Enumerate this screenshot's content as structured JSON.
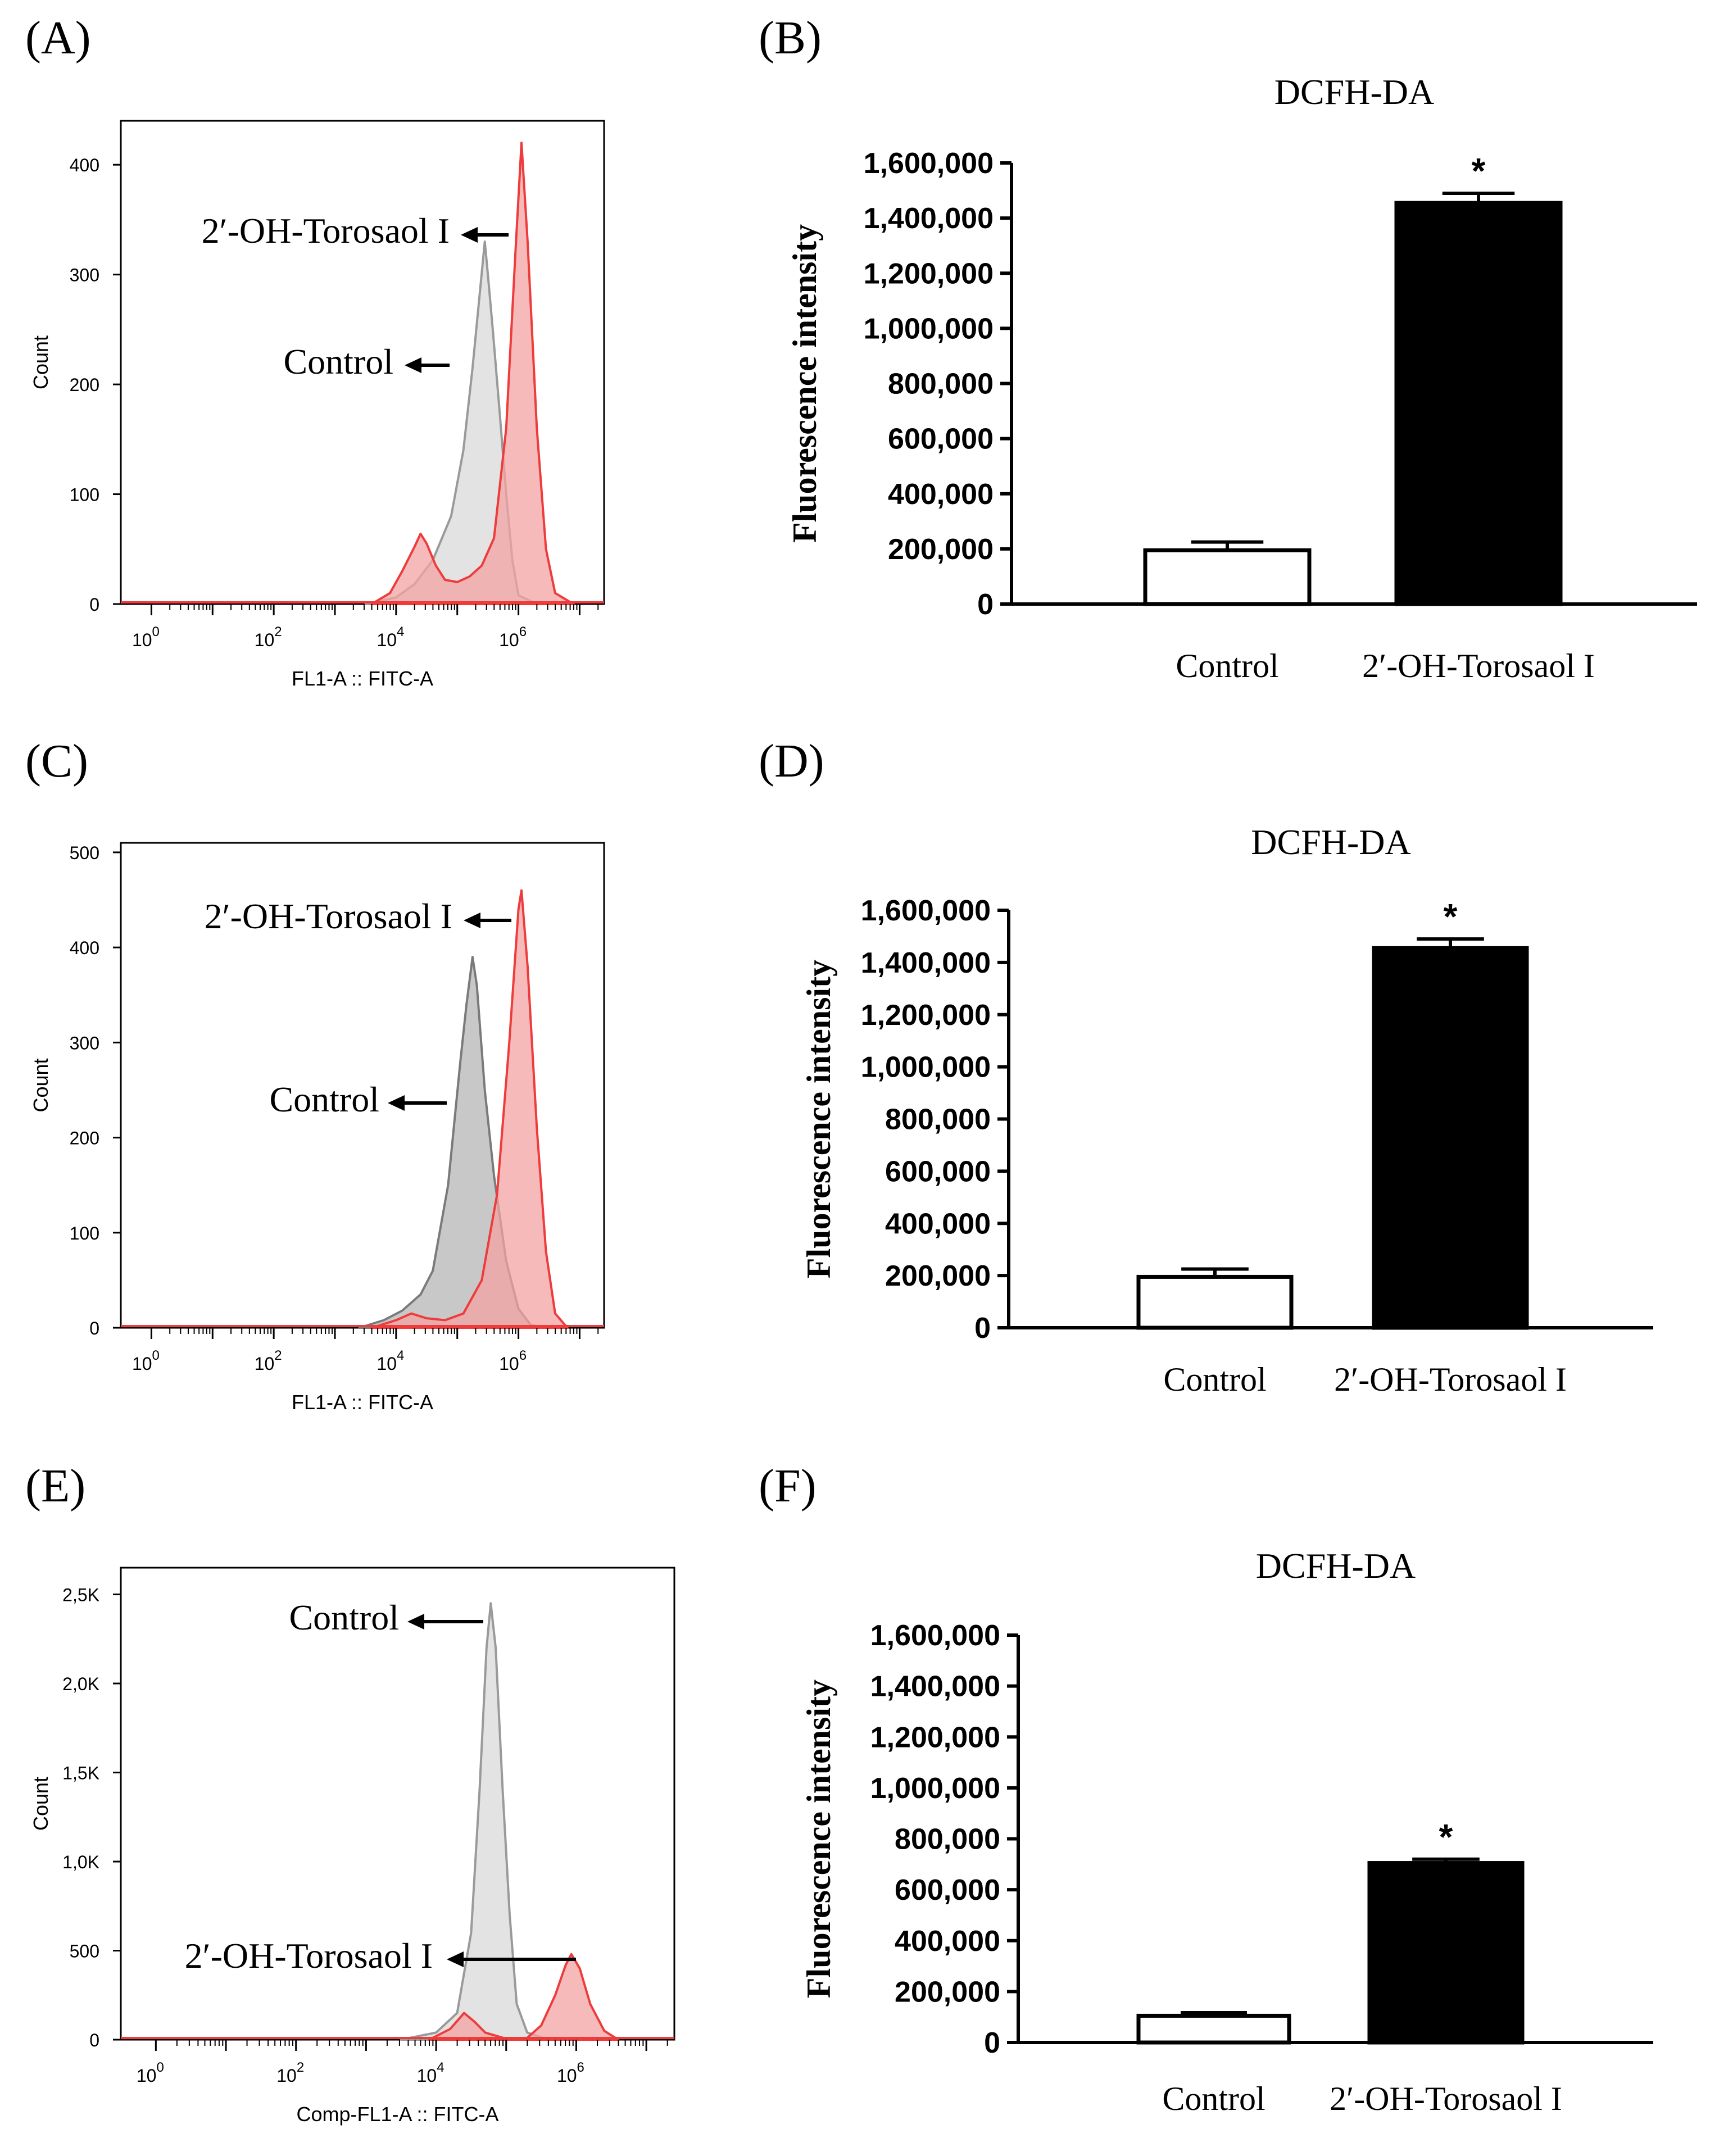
{
  "figure": {
    "panels": [
      {
        "id": "A",
        "label": "(A)",
        "kind": "histogram"
      },
      {
        "id": "B",
        "label": "(B)",
        "kind": "bar"
      },
      {
        "id": "C",
        "label": "(C)",
        "kind": "histogram"
      },
      {
        "id": "D",
        "label": "(D)",
        "kind": "bar"
      },
      {
        "id": "E",
        "label": "(E)",
        "kind": "histogram"
      },
      {
        "id": "F",
        "label": "(F)",
        "kind": "bar"
      }
    ]
  },
  "chart_data": [
    {
      "panel": "A",
      "type": "area",
      "title": "",
      "xlabel": "FL1-A :: FITC-A",
      "ylabel": "Count",
      "x_scale": "log10",
      "xlim_log10": [
        -0.5,
        7.4
      ],
      "ylim": [
        0,
        440
      ],
      "x_tick_labels": [
        {
          "base": "10",
          "exp": "0",
          "log": 0
        },
        {
          "base": "10",
          "exp": "2",
          "log": 2
        },
        {
          "base": "10",
          "exp": "4",
          "log": 4
        },
        {
          "base": "10",
          "exp": "6",
          "log": 6
        }
      ],
      "y_ticks": [
        {
          "label": "0",
          "value": 0
        },
        {
          "label": "100",
          "value": 100
        },
        {
          "label": "200",
          "value": 200
        },
        {
          "label": "300",
          "value": 300
        },
        {
          "label": "400",
          "value": 400
        }
      ],
      "series": [
        {
          "name": "Control",
          "color": "#9a9a9a",
          "fill": "#d9d9d9",
          "points": [
            [
              3.5,
              0
            ],
            [
              4.0,
              6
            ],
            [
              4.3,
              18
            ],
            [
              4.6,
              40
            ],
            [
              4.9,
              80
            ],
            [
              5.1,
              140
            ],
            [
              5.25,
              215
            ],
            [
              5.38,
              290
            ],
            [
              5.45,
              330
            ],
            [
              5.5,
              300
            ],
            [
              5.58,
              250
            ],
            [
              5.7,
              170
            ],
            [
              5.8,
              100
            ],
            [
              5.9,
              40
            ],
            [
              6.0,
              8
            ],
            [
              6.3,
              0
            ]
          ]
        },
        {
          "name": "2'-OH-Torosaol I",
          "color": "#ee3b3b",
          "fill": "#f4a3a3",
          "points": [
            [
              3.6,
              0
            ],
            [
              3.9,
              10
            ],
            [
              4.1,
              30
            ],
            [
              4.3,
              52
            ],
            [
              4.4,
              64
            ],
            [
              4.5,
              55
            ],
            [
              4.65,
              35
            ],
            [
              4.8,
              22
            ],
            [
              5.0,
              20
            ],
            [
              5.2,
              25
            ],
            [
              5.4,
              35
            ],
            [
              5.6,
              60
            ],
            [
              5.8,
              160
            ],
            [
              5.95,
              320
            ],
            [
              6.05,
              420
            ],
            [
              6.15,
              330
            ],
            [
              6.3,
              160
            ],
            [
              6.45,
              50
            ],
            [
              6.6,
              10
            ],
            [
              6.9,
              0
            ]
          ]
        }
      ],
      "annotations": [
        {
          "text": "2′-OH-Torosaol I",
          "arrow_to": "2'-OH-Torosaol I"
        },
        {
          "text": "Control",
          "arrow_to": "Control"
        }
      ]
    },
    {
      "panel": "B",
      "type": "bar",
      "title": "DCFH-DA",
      "xlabel": "",
      "ylabel": "Fluorescence intensity",
      "categories": [
        "Control",
        "2′-OH-Torosaol I"
      ],
      "values": [
        195000,
        1455000
      ],
      "errors": [
        30000,
        35000
      ],
      "significance": [
        "",
        "*"
      ],
      "ylim": [
        0,
        1600000
      ],
      "y_tick_labels": [
        "0",
        "200,000",
        "400,000",
        "600,000",
        "800,000",
        "1,000,000",
        "1,200,000",
        "1,400,000",
        "1,600,000"
      ]
    },
    {
      "panel": "C",
      "type": "area",
      "title": "",
      "xlabel": "FL1-A :: FITC-A",
      "ylabel": "Count",
      "x_scale": "log10",
      "xlim_log10": [
        -0.5,
        7.4
      ],
      "ylim": [
        0,
        510
      ],
      "x_tick_labels": [
        {
          "base": "10",
          "exp": "0",
          "log": 0
        },
        {
          "base": "10",
          "exp": "2",
          "log": 2
        },
        {
          "base": "10",
          "exp": "4",
          "log": 4
        },
        {
          "base": "10",
          "exp": "6",
          "log": 6
        }
      ],
      "y_ticks": [
        {
          "label": "0",
          "value": 0
        },
        {
          "label": "100",
          "value": 100
        },
        {
          "label": "200",
          "value": 200
        },
        {
          "label": "300",
          "value": 300
        },
        {
          "label": "400",
          "value": 400
        },
        {
          "label": "500",
          "value": 500
        }
      ],
      "series": [
        {
          "name": "Control",
          "color": "#7a7a7a",
          "fill": "#b5b5b5",
          "points": [
            [
              3.4,
              0
            ],
            [
              3.8,
              8
            ],
            [
              4.1,
              18
            ],
            [
              4.4,
              35
            ],
            [
              4.6,
              60
            ],
            [
              4.85,
              150
            ],
            [
              5.05,
              280
            ],
            [
              5.15,
              340
            ],
            [
              5.25,
              390
            ],
            [
              5.32,
              360
            ],
            [
              5.45,
              250
            ],
            [
              5.6,
              160
            ],
            [
              5.8,
              70
            ],
            [
              6.0,
              20
            ],
            [
              6.2,
              3
            ],
            [
              6.4,
              0
            ]
          ]
        },
        {
          "name": "2'-OH-Torosaol I",
          "color": "#ee3b3b",
          "fill": "#f4a3a3",
          "points": [
            [
              3.6,
              0
            ],
            [
              4.0,
              8
            ],
            [
              4.25,
              15
            ],
            [
              4.5,
              10
            ],
            [
              4.8,
              8
            ],
            [
              5.1,
              15
            ],
            [
              5.4,
              50
            ],
            [
              5.65,
              140
            ],
            [
              5.85,
              300
            ],
            [
              6.0,
              440
            ],
            [
              6.05,
              460
            ],
            [
              6.15,
              380
            ],
            [
              6.3,
              210
            ],
            [
              6.45,
              80
            ],
            [
              6.6,
              15
            ],
            [
              6.8,
              0
            ]
          ]
        }
      ],
      "annotations": [
        {
          "text": "2′-OH-Torosaol I",
          "arrow_to": "2'-OH-Torosaol I"
        },
        {
          "text": "Control",
          "arrow_to": "Control"
        }
      ]
    },
    {
      "panel": "D",
      "type": "bar",
      "title": "DCFH-DA",
      "xlabel": "",
      "ylabel": "Fluorescence intensity",
      "categories": [
        "Control",
        "2′-OH-Torosaol I"
      ],
      "values": [
        195000,
        1455000
      ],
      "errors": [
        30000,
        35000
      ],
      "significance": [
        "",
        "*"
      ],
      "ylim": [
        0,
        1600000
      ],
      "y_tick_labels": [
        "0",
        "200,000",
        "400,000",
        "600,000",
        "800,000",
        "1,000,000",
        "1,200,000",
        "1,400,000",
        "1,600,000"
      ]
    },
    {
      "panel": "E",
      "type": "area",
      "title": "",
      "xlabel": "Comp-FL1-A :: FITC-A",
      "ylabel": "Count",
      "x_scale": "log10",
      "xlim_log10": [
        -0.5,
        7.4
      ],
      "ylim": [
        0,
        2650
      ],
      "x_tick_labels": [
        {
          "base": "10",
          "exp": "0",
          "log": 0
        },
        {
          "base": "10",
          "exp": "2",
          "log": 2
        },
        {
          "base": "10",
          "exp": "4",
          "log": 4
        },
        {
          "base": "10",
          "exp": "6",
          "log": 6
        }
      ],
      "y_ticks": [
        {
          "label": "0",
          "value": 0
        },
        {
          "label": "500",
          "value": 500
        },
        {
          "label": "1,0K",
          "value": 1000
        },
        {
          "label": "1,5K",
          "value": 1500
        },
        {
          "label": "2,0K",
          "value": 2000
        },
        {
          "label": "2,5K",
          "value": 2500
        }
      ],
      "series": [
        {
          "name": "Control",
          "color": "#9a9a9a",
          "fill": "#d9d9d9",
          "points": [
            [
              3.5,
              0
            ],
            [
              4.0,
              40
            ],
            [
              4.3,
              150
            ],
            [
              4.5,
              600
            ],
            [
              4.62,
              1400
            ],
            [
              4.72,
              2200
            ],
            [
              4.78,
              2450
            ],
            [
              4.85,
              2200
            ],
            [
              4.95,
              1400
            ],
            [
              5.05,
              700
            ],
            [
              5.15,
              200
            ],
            [
              5.3,
              40
            ],
            [
              5.6,
              0
            ]
          ]
        },
        {
          "name": "2'-OH-Torosaol I",
          "color": "#ee3b3b",
          "fill": "#f4a3a3",
          "points": [
            [
              3.9,
              0
            ],
            [
              4.2,
              60
            ],
            [
              4.4,
              150
            ],
            [
              4.55,
              100
            ],
            [
              4.7,
              40
            ],
            [
              5.0,
              5
            ],
            [
              5.3,
              10
            ],
            [
              5.5,
              80
            ],
            [
              5.7,
              250
            ],
            [
              5.85,
              420
            ],
            [
              5.93,
              480
            ],
            [
              6.05,
              400
            ],
            [
              6.2,
              200
            ],
            [
              6.4,
              50
            ],
            [
              6.6,
              0
            ]
          ]
        }
      ],
      "annotations": [
        {
          "text": "Control",
          "arrow_to": "Control"
        },
        {
          "text": "2′-OH-Torosaol I",
          "arrow_to": "2'-OH-Torosaol I"
        }
      ]
    },
    {
      "panel": "F",
      "type": "bar",
      "title": "DCFH-DA",
      "xlabel": "",
      "ylabel": "Fluorescence intensity",
      "categories": [
        "Control",
        "2′-OH-Torosaol I"
      ],
      "values": [
        105000,
        705000
      ],
      "errors": [
        12000,
        15000
      ],
      "significance": [
        "",
        "*"
      ],
      "ylim": [
        0,
        1600000
      ],
      "y_tick_labels": [
        "0",
        "200,000",
        "400,000",
        "600,000",
        "800,000",
        "1,000,000",
        "1,200,000",
        "1,400,000",
        "1,600,000"
      ]
    }
  ]
}
